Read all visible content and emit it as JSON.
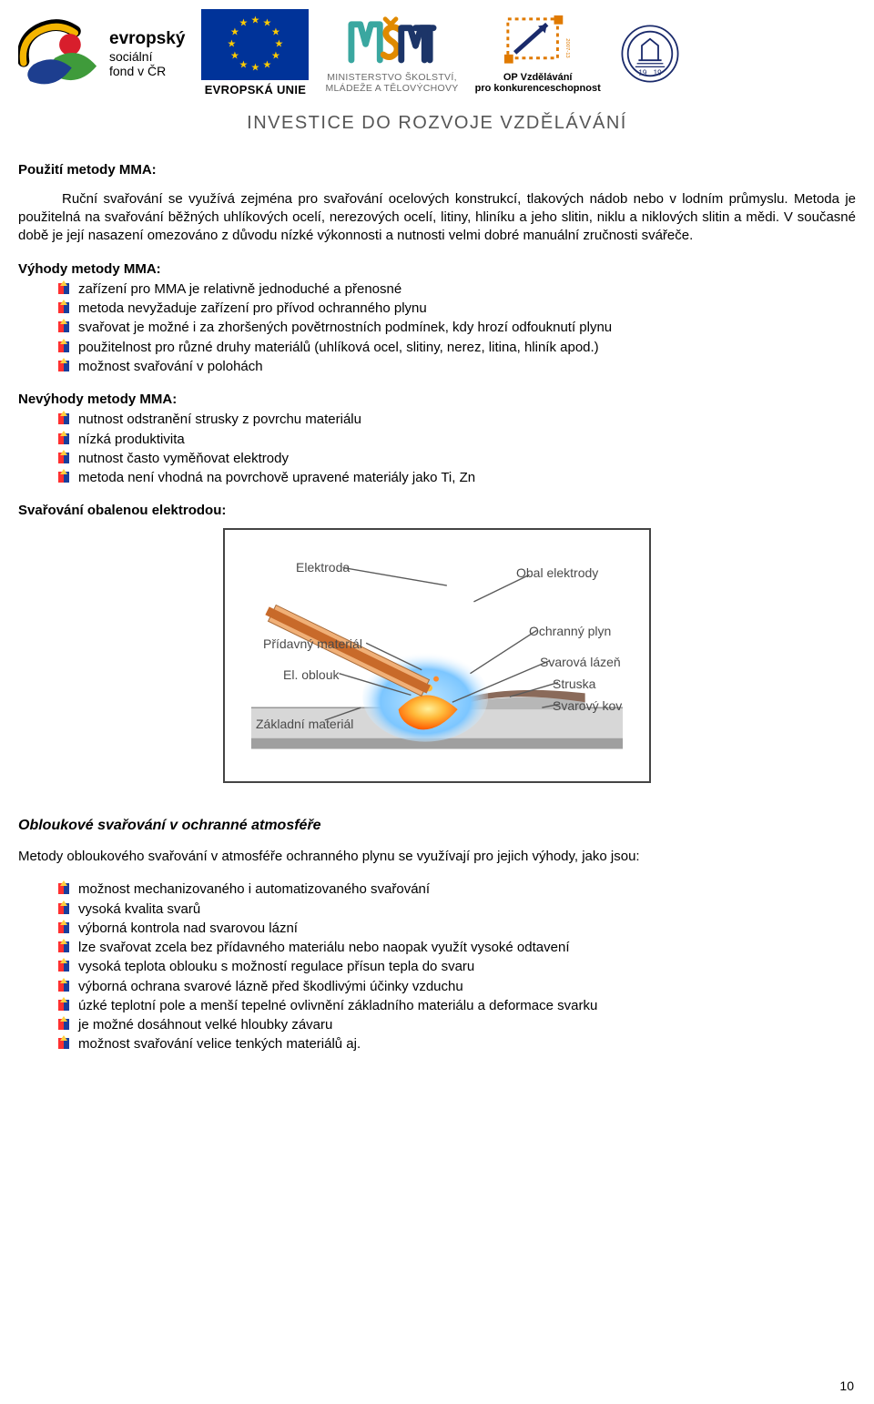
{
  "header": {
    "esf": {
      "line1": "evropský",
      "line2": "sociální",
      "line3": "fond v ČR",
      "colors": {
        "yellow": "#f4b400",
        "red": "#d81e2c",
        "green": "#3f9b3b",
        "blue": "#1d3e8f",
        "black": "#000000"
      }
    },
    "eu": {
      "label": "EVROPSKÁ UNIE",
      "flag_bg": "#003399",
      "star_color": "#ffcc00"
    },
    "msmt": {
      "line1": "MINISTERSTVO ŠKOLSTVÍ,",
      "line2": "MLÁDEŽE A TĚLOVÝCHOVY",
      "colors": {
        "teal": "#3aa7a0",
        "orange": "#e08a00",
        "navy": "#1c3568"
      }
    },
    "opv": {
      "line1": "OP Vzdělávání",
      "line2": "pro konkurenceschopnost",
      "box_stroke": "#e07a00",
      "arrow": "#1a2a6b"
    },
    "gear": {
      "year": "1919",
      "stroke": "#1a2a6b"
    },
    "tagline": "INVESTICE DO ROZVOJE VZDĚLÁVÁNÍ"
  },
  "sections": {
    "use_title": "Použití metody MMA:",
    "use_para": "Ruční svařování se využívá zejména pro svařování ocelových konstrukcí, tlakových nádob nebo v lodním průmyslu. Metoda je použitelná na svařování běžných uhlíkových ocelí, nerezových ocelí, litiny, hliníku a jeho slitin, niklu a niklových slitin a mědi. V současné době je její nasazení omezováno z důvodu nízké výkonnosti a nutnosti velmi dobré manuální zručnosti svářeče.",
    "adv_title": "Výhody metody MMA:",
    "adv": [
      "zařízení pro MMA je relativně jednoduché a přenosné",
      "metoda nevyžaduje zařízení pro přívod ochranného plynu",
      "svařovat je možné i za zhoršených povětrnostních podmínek, kdy hrozí odfouknutí plynu",
      "použitelnost pro různé druhy materiálů (uhlíková ocel, slitiny, nerez, litina, hliník apod.)",
      "možnost svařování v polohách"
    ],
    "dis_title": "Nevýhody metody MMA:",
    "dis": [
      "nutnost odstranění strusky z povrchu materiálu",
      "nízká produktivita",
      "nutnost často vyměňovat elektrody",
      "metoda není vhodná na povrchově upravené materiály jako Ti, Zn"
    ],
    "diag_title": "Svařování obalenou elektrodou:",
    "arc_title": "Obloukové svařování v ochranné atmosféře",
    "arc_lead": "Metody obloukového svařování v atmosféře ochranného plynu se využívají pro jejich výhody, jako jsou:",
    "arc": [
      "možnost mechanizovaného i automatizovaného svařování",
      "vysoká kvalita svarů",
      "výborná kontrola nad svarovou lázní",
      "lze svařovat zcela bez přídavného materiálu nebo naopak využít vysoké odtavení",
      "vysoká teplota oblouku s možností regulace přísun tepla do svaru",
      "výborná ochrana svarové lázně před škodlivými účinky vzduchu",
      "úzké teplotní pole a menší tepelné ovlivnění základního materiálu a deformace svarku",
      "je možné dosáhnout velké hloubky závaru",
      "možnost svařování velice tenkých materiálů aj."
    ]
  },
  "diagram": {
    "labels": {
      "elektroda": "Elektroda",
      "obal": "Obal elektrody",
      "plyn": "Ochranný plyn",
      "lazen": "Svarová lázeň",
      "struska": "Struska",
      "kov": "Svarový kov",
      "pridavny": "Přídavný materiál",
      "oblouk": "El. oblouk",
      "zakladni": "Základní materiál"
    },
    "colors": {
      "electrode_core": "#c86a2a",
      "electrode_coat": "#f0b078",
      "gas_halo": "#7cc6ff",
      "pool": "#ff6a00",
      "pool_inner": "#ffdf3a",
      "slag": "#8a6a5a",
      "weld_metal": "#b7b7b7",
      "base_top": "#d7d7d7",
      "base_side": "#9f9f9f",
      "leader": "#5a5a5a"
    }
  },
  "page_number": "10"
}
